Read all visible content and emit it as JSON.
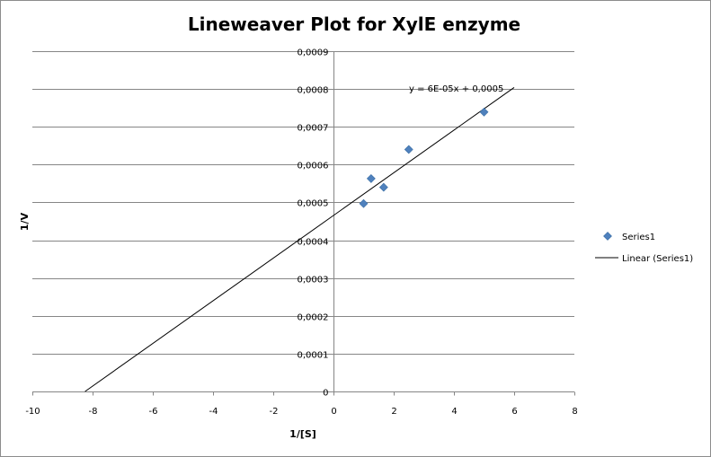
{
  "chart_data": {
    "type": "scatter",
    "title": "Lineweaver Plot for XylE enzyme",
    "xlabel": "1/[S]",
    "ylabel": "1/V",
    "xlim": [
      -10,
      8
    ],
    "ylim": [
      0,
      0.0009
    ],
    "x_ticks": [
      -10,
      -8,
      -6,
      -4,
      -2,
      0,
      2,
      4,
      6,
      8
    ],
    "x_tick_labels": [
      "-10",
      "-8",
      "-6",
      "-4",
      "-2",
      "0",
      "2",
      "4",
      "6",
      "8"
    ],
    "y_ticks": [
      0,
      0.0001,
      0.0002,
      0.0003,
      0.0004,
      0.0005,
      0.0006,
      0.0007,
      0.0008,
      0.0009
    ],
    "y_tick_labels": [
      "0",
      "0,0001",
      "0,0002",
      "0,0003",
      "0,0004",
      "0,0005",
      "0,0006",
      "0,0007",
      "0,0008",
      "0,0009"
    ],
    "grid": "horizontal",
    "legend_position": "right",
    "series": [
      {
        "name": "Series1",
        "marker": "diamond",
        "color": "#4f81bd",
        "x": [
          1.0,
          1.25,
          1.667,
          2.5,
          5.0
        ],
        "y": [
          0.000497,
          0.000563,
          0.00054,
          0.00064,
          0.000739
        ]
      }
    ],
    "trendline": {
      "name": "Linear (Series1)",
      "color": "#000000",
      "equation_label": "y = 6E-05x + 0,0005",
      "x_range": [
        -8.25,
        6.0
      ],
      "y_range": [
        0,
        0.000804
      ]
    }
  }
}
